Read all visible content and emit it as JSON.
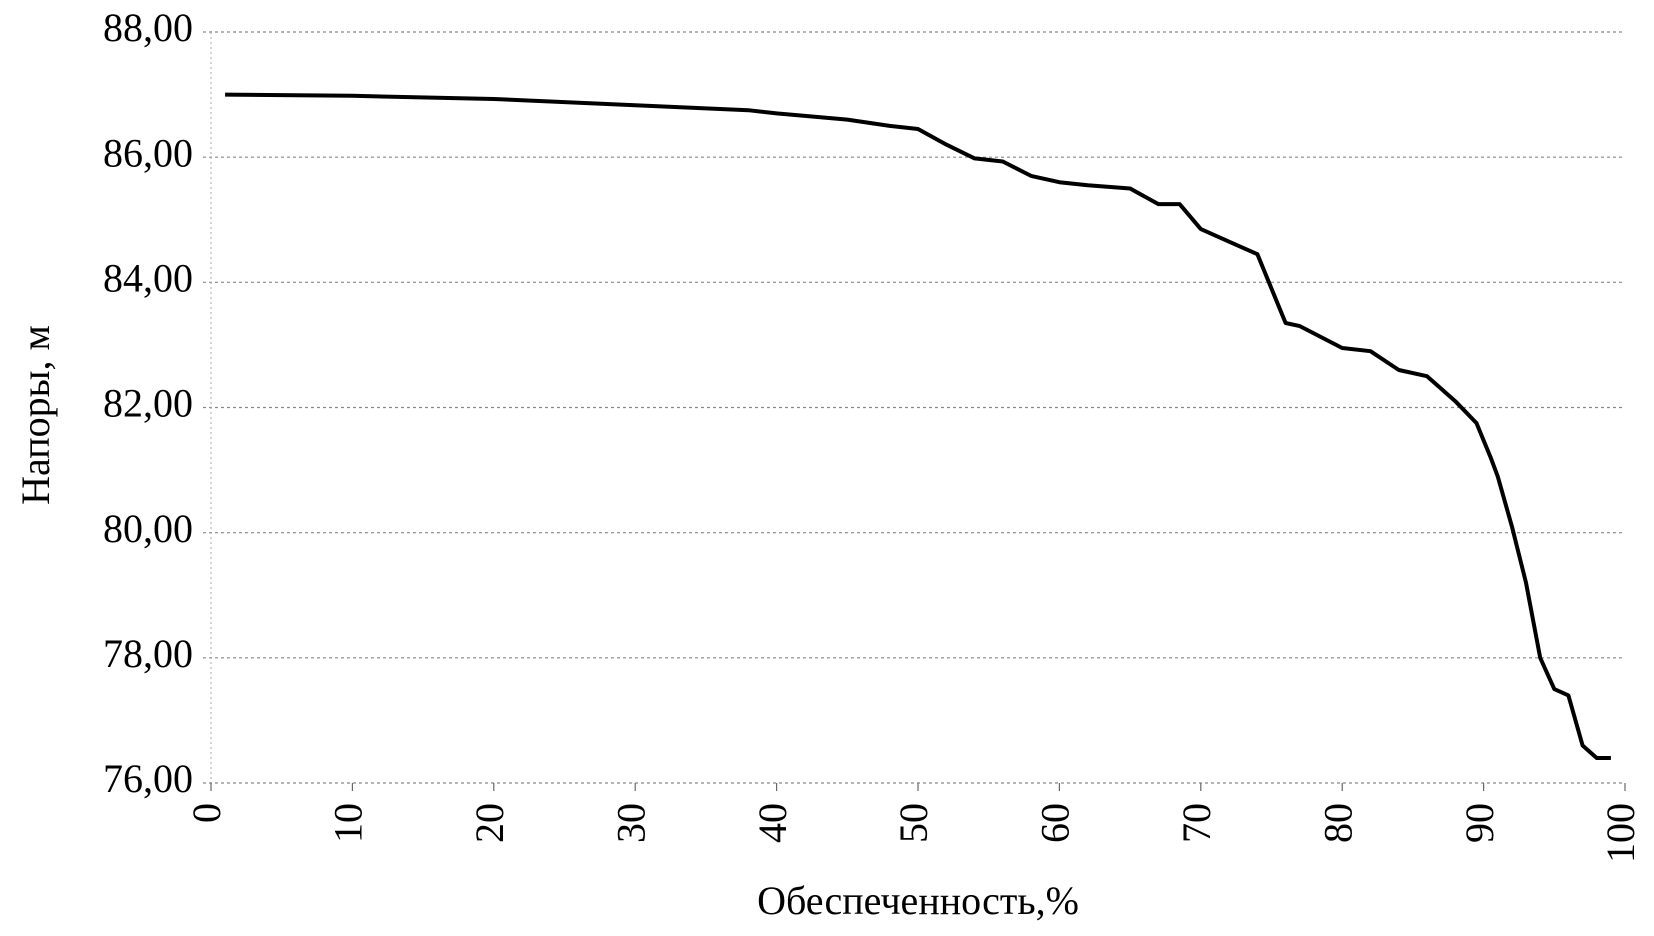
{
  "chart_data": {
    "type": "line",
    "x_label": "Обеспеченность,%",
    "y_label": "Напоры, м",
    "x": [
      1,
      10,
      20,
      30,
      38,
      40,
      45,
      48,
      50,
      52,
      54,
      56,
      58,
      60,
      62,
      65,
      67,
      68.5,
      70,
      72,
      74,
      75,
      76,
      77,
      80,
      82,
      84,
      86,
      88,
      89.5,
      90.5,
      91,
      92,
      93,
      94,
      95,
      96,
      97,
      98,
      99
    ],
    "values": [
      87.0,
      86.98,
      86.93,
      86.83,
      86.75,
      86.7,
      86.6,
      86.5,
      86.45,
      86.2,
      85.98,
      85.93,
      85.7,
      85.6,
      85.55,
      85.5,
      85.25,
      85.25,
      84.85,
      84.65,
      84.45,
      83.9,
      83.35,
      83.3,
      82.95,
      82.9,
      82.6,
      82.5,
      82.1,
      81.75,
      81.2,
      80.9,
      80.1,
      79.2,
      78.0,
      77.5,
      77.4,
      76.6,
      76.4,
      76.4
    ],
    "color": "#000000",
    "xlim": [
      0,
      100
    ],
    "xticks": [
      0,
      10,
      20,
      30,
      40,
      50,
      60,
      70,
      80,
      90,
      100
    ],
    "ylim": [
      76,
      88
    ],
    "yticks": [
      {
        "value": 76,
        "label": "76,00"
      },
      {
        "value": 78,
        "label": "78,00"
      },
      {
        "value": 80,
        "label": "80,00"
      },
      {
        "value": 82,
        "label": "82,00"
      },
      {
        "value": 84,
        "label": "84,00"
      },
      {
        "value": 86,
        "label": "86,00"
      },
      {
        "value": 88,
        "label": "88,00"
      }
    ],
    "grid": true
  }
}
